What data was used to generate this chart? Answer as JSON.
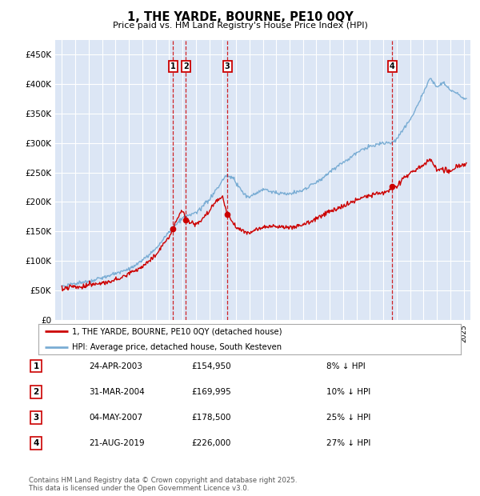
{
  "title": "1, THE YARDE, BOURNE, PE10 0QY",
  "subtitle": "Price paid vs. HM Land Registry's House Price Index (HPI)",
  "legend_label_red": "1, THE YARDE, BOURNE, PE10 0QY (detached house)",
  "legend_label_blue": "HPI: Average price, detached house, South Kesteven",
  "footer": "Contains HM Land Registry data © Crown copyright and database right 2025.\nThis data is licensed under the Open Government Licence v3.0.",
  "transactions": [
    {
      "num": 1,
      "date": "24-APR-2003",
      "price": 154950,
      "pct": "8%",
      "dir": "↓",
      "year_x": 2003.3
    },
    {
      "num": 2,
      "date": "31-MAR-2004",
      "price": 169995,
      "pct": "10%",
      "dir": "↓",
      "year_x": 2004.25
    },
    {
      "num": 3,
      "date": "04-MAY-2007",
      "price": 178500,
      "pct": "25%",
      "dir": "↓",
      "year_x": 2007.35
    },
    {
      "num": 4,
      "date": "21-AUG-2019",
      "price": 226000,
      "pct": "27%",
      "dir": "↓",
      "year_x": 2019.65
    }
  ],
  "ylim": [
    0,
    475000
  ],
  "yticks": [
    0,
    50000,
    100000,
    150000,
    200000,
    250000,
    300000,
    350000,
    400000,
    450000
  ],
  "ytick_labels": [
    "£0",
    "£50K",
    "£100K",
    "£150K",
    "£200K",
    "£250K",
    "£300K",
    "£350K",
    "£400K",
    "£450K"
  ],
  "xlim_start": 1994.5,
  "xlim_end": 2025.5,
  "background_color": "#dce6f5",
  "grid_color": "#ffffff",
  "red_color": "#cc0000",
  "blue_color": "#7aadd4",
  "transaction_box_color": "#cc0000",
  "dashed_line_color": "#cc0000",
  "hpi_keypoints": [
    [
      1995.0,
      52000
    ],
    [
      1996.0,
      56000
    ],
    [
      1997.0,
      61000
    ],
    [
      1998.0,
      67000
    ],
    [
      1999.0,
      74000
    ],
    [
      2000.0,
      84000
    ],
    [
      2001.0,
      97000
    ],
    [
      2002.0,
      118000
    ],
    [
      2003.0,
      148000
    ],
    [
      2004.0,
      172000
    ],
    [
      2005.0,
      182000
    ],
    [
      2006.0,
      205000
    ],
    [
      2007.3,
      248000
    ],
    [
      2007.8,
      242000
    ],
    [
      2008.5,
      220000
    ],
    [
      2009.0,
      210000
    ],
    [
      2009.5,
      218000
    ],
    [
      2010.0,
      225000
    ],
    [
      2010.5,
      222000
    ],
    [
      2011.0,
      218000
    ],
    [
      2012.0,
      215000
    ],
    [
      2013.0,
      220000
    ],
    [
      2014.0,
      235000
    ],
    [
      2015.0,
      252000
    ],
    [
      2016.0,
      268000
    ],
    [
      2017.0,
      285000
    ],
    [
      2018.0,
      295000
    ],
    [
      2019.0,
      302000
    ],
    [
      2019.65,
      302000
    ],
    [
      2020.0,
      308000
    ],
    [
      2021.0,
      340000
    ],
    [
      2022.0,
      385000
    ],
    [
      2022.5,
      410000
    ],
    [
      2023.0,
      395000
    ],
    [
      2023.5,
      405000
    ],
    [
      2024.0,
      390000
    ],
    [
      2024.5,
      385000
    ],
    [
      2025.0,
      375000
    ]
  ],
  "red_keypoints": [
    [
      1995.0,
      46000
    ],
    [
      1996.0,
      50000
    ],
    [
      1997.0,
      55000
    ],
    [
      1998.0,
      60000
    ],
    [
      1999.0,
      66000
    ],
    [
      2000.0,
      75000
    ],
    [
      2001.0,
      87000
    ],
    [
      2002.0,
      107000
    ],
    [
      2003.0,
      138000
    ],
    [
      2003.3,
      154950
    ],
    [
      2003.8,
      178000
    ],
    [
      2004.0,
      185000
    ],
    [
      2004.25,
      169995
    ],
    [
      2004.5,
      165000
    ],
    [
      2005.0,
      162000
    ],
    [
      2005.5,
      170000
    ],
    [
      2006.0,
      185000
    ],
    [
      2006.5,
      200000
    ],
    [
      2007.0,
      210000
    ],
    [
      2007.35,
      178500
    ],
    [
      2007.8,
      165000
    ],
    [
      2008.0,
      158000
    ],
    [
      2008.5,
      150000
    ],
    [
      2009.0,
      148000
    ],
    [
      2009.5,
      152000
    ],
    [
      2010.0,
      157000
    ],
    [
      2011.0,
      158000
    ],
    [
      2012.0,
      157000
    ],
    [
      2013.0,
      160000
    ],
    [
      2014.0,
      170000
    ],
    [
      2015.0,
      183000
    ],
    [
      2016.0,
      193000
    ],
    [
      2017.0,
      203000
    ],
    [
      2018.0,
      213000
    ],
    [
      2019.0,
      220000
    ],
    [
      2019.65,
      226000
    ],
    [
      2020.0,
      232000
    ],
    [
      2020.5,
      245000
    ],
    [
      2021.0,
      255000
    ],
    [
      2022.0,
      268000
    ],
    [
      2022.5,
      278000
    ],
    [
      2023.0,
      262000
    ],
    [
      2023.5,
      260000
    ],
    [
      2024.0,
      258000
    ],
    [
      2024.5,
      263000
    ],
    [
      2025.0,
      268000
    ]
  ]
}
